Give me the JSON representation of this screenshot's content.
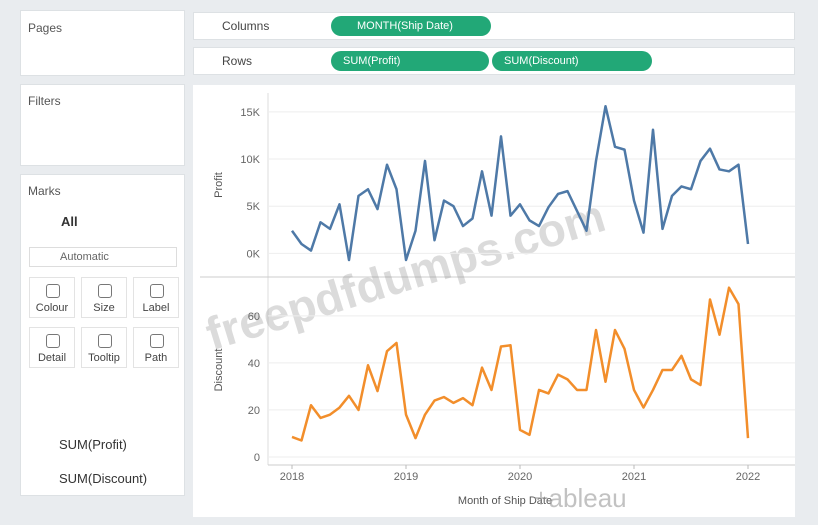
{
  "sidebar": {
    "pages": "Pages",
    "filters": "Filters",
    "marks": "Marks",
    "all": "All",
    "mark_type": "Automatic",
    "buttons": [
      "Colour",
      "Size",
      "Label",
      "Detail",
      "Tooltip",
      "Path"
    ],
    "fields": [
      "SUM(Profit)",
      "SUM(Discount)"
    ]
  },
  "shelves": {
    "columns": {
      "label": "Columns",
      "pills": [
        "MONTH(Ship Date)"
      ]
    },
    "rows": {
      "label": "Rows",
      "pills": [
        "SUM(Profit)",
        "SUM(Discount)"
      ]
    }
  },
  "watermark": "freepdfdumps.com",
  "logo": "+ableau",
  "chart_data": {
    "type": "line",
    "x_label": "Month of Ship Date",
    "y_label": "Profit",
    "y2_label": "Discount",
    "categories": [
      "2018",
      null,
      null,
      null,
      null,
      null,
      null,
      null,
      null,
      null,
      null,
      null,
      "2019",
      null,
      null,
      null,
      null,
      null,
      null,
      null,
      null,
      null,
      null,
      null,
      "2020",
      null,
      null,
      null,
      null,
      null,
      null,
      null,
      null,
      null,
      null,
      null,
      "2021",
      null,
      null,
      null,
      null,
      null,
      null,
      null,
      null,
      null,
      null,
      null,
      "2022"
    ],
    "series": [
      {
        "color": "#4e79a7",
        "values": [
          2400,
          1000,
          300,
          3300,
          2600,
          5200,
          -700,
          6100,
          6800,
          4700,
          9400,
          6800,
          -700,
          2400,
          9800,
          1400,
          5600,
          5000,
          2900,
          3700,
          8700,
          4000,
          12400,
          4000,
          5200,
          3500,
          2900,
          4900,
          6300,
          6600,
          4500,
          2400,
          9800,
          15600,
          11300,
          11000,
          5600,
          2200,
          13100,
          2600,
          6100,
          7100,
          6800,
          9800,
          11100,
          8900,
          8700,
          9400,
          1000
        ]
      },
      {
        "color": "#f28e2b",
        "axis": "y2",
        "values": [
          8.5,
          7,
          22,
          16.6,
          18,
          21,
          26,
          20,
          39,
          28,
          45,
          48.5,
          18,
          8,
          18,
          24,
          25.5,
          23,
          25,
          22,
          38,
          28.5,
          47,
          47.5,
          11.5,
          9.4,
          28.5,
          27,
          35,
          33,
          28.5,
          28.5,
          54,
          32,
          54,
          46,
          28.5,
          21,
          28.5,
          37,
          37,
          43,
          33,
          30.6,
          67,
          52,
          72,
          65,
          8
        ]
      }
    ],
    "ylim": [
      -2500,
      17000
    ],
    "yticks": [
      {
        "value": 0,
        "label": "0K"
      },
      {
        "value": 5000,
        "label": "5K"
      },
      {
        "value": 10000,
        "label": "10K"
      },
      {
        "value": 15000,
        "label": "15K"
      }
    ],
    "y2lim": [
      -3,
      74
    ],
    "y2ticks": [
      0,
      20,
      40,
      60
    ],
    "grid": true
  }
}
